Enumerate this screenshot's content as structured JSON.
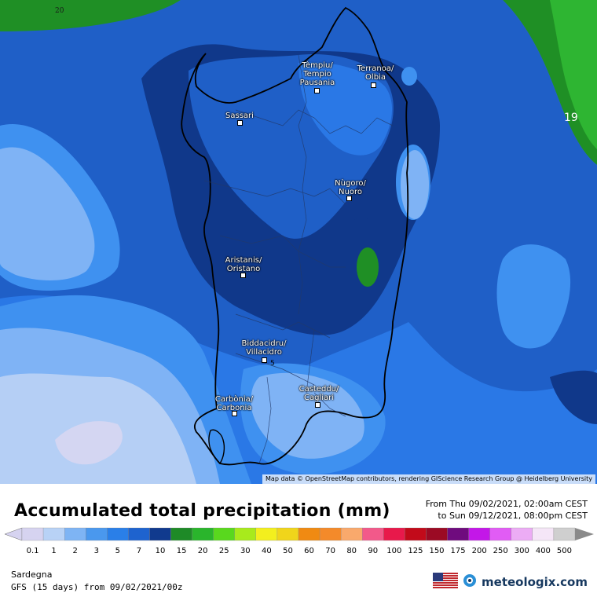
{
  "map": {
    "attribution": "Map data © OpenStreetMap contributors, rendering GIScience Research Group @ Heidelberg University",
    "contour_labels": {
      "c20": "20",
      "c19": "19",
      "c5": "5"
    },
    "cities": [
      {
        "id": "tempio",
        "label": "Tèmpiu/\nTempio\nPausania"
      },
      {
        "id": "olbia",
        "label": "Terranoa/\nOlbia"
      },
      {
        "id": "sassari",
        "label": "Sassari"
      },
      {
        "id": "nuoro",
        "label": "Nùgoro/\nNuoro"
      },
      {
        "id": "oristano",
        "label": "Aristanis/\nOristano"
      },
      {
        "id": "villacidro",
        "label": "Biddacidru/\nVillacidro"
      },
      {
        "id": "cagliari",
        "label": "Casteddu/\nCagliari"
      },
      {
        "id": "carbonia",
        "label": "Carbònia/\nCarbonia"
      }
    ],
    "colors": {
      "v0_1": "#d4d6f2",
      "v1": "#b5cff5",
      "v2": "#7fb3f5",
      "v3": "#3f91f0",
      "v5": "#2a78e6",
      "v7": "#1f5fc7",
      "v10": "#10388a",
      "v15": "#1f8f25",
      "v20": "#2eb532"
    }
  },
  "header": {
    "title": "Accumulated total precipitation (mm)",
    "from": "From Thu 09/02/2021, 02:00am CEST",
    "to": "to Sun 09/12/2021, 08:00pm CEST"
  },
  "legend": {
    "ticks": [
      "0.1",
      "1",
      "2",
      "3",
      "5",
      "7",
      "10",
      "15",
      "20",
      "25",
      "30",
      "40",
      "50",
      "60",
      "70",
      "80",
      "90",
      "100",
      "125",
      "150",
      "175",
      "200",
      "250",
      "300",
      "400",
      "500"
    ],
    "colors": [
      "#d6d3f0",
      "#b8d2f6",
      "#7eb4f4",
      "#4a98ee",
      "#2a7fe8",
      "#1e63cf",
      "#103a8e",
      "#1e8a27",
      "#2ab52c",
      "#59d81e",
      "#a8ea1c",
      "#f3ef1e",
      "#f0d51b",
      "#f08a12",
      "#f48a2a",
      "#f9a96c",
      "#f2598a",
      "#e8194b",
      "#c20a1a",
      "#9b0a24",
      "#6f0b7e",
      "#c317e8",
      "#e15cf5",
      "#ecacf5",
      "#f5e6f7",
      "#cfcfcf"
    ]
  },
  "footer": {
    "region": "Sardegna",
    "model": "GFS (15 days) from  09/02/2021/00z",
    "brand": "meteologix.com"
  }
}
